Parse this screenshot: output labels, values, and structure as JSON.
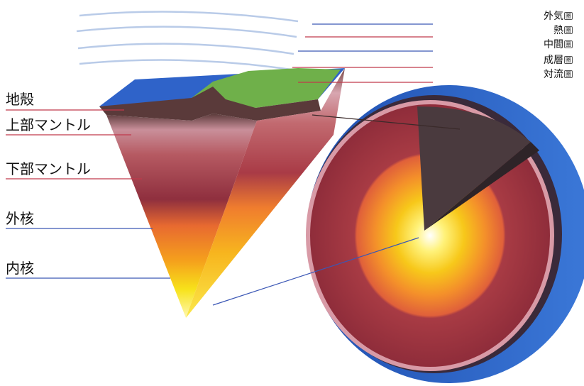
{
  "atmosphere_labels": [
    {
      "name": "外気",
      "suffix": "圏"
    },
    {
      "name": "熱",
      "suffix": "圏"
    },
    {
      "name": "中間",
      "suffix": "圏"
    },
    {
      "name": "成層",
      "suffix": "圏"
    },
    {
      "name": "対流",
      "suffix": "圏"
    }
  ],
  "interior_labels": [
    "地殻",
    "上部マントル",
    "下部マントル",
    "外核",
    "内核"
  ],
  "colors": {
    "ocean_blue": "#2f63c9",
    "land_green": "#6fb04a",
    "crust": "#5a3a3a",
    "upper_mantle": "#c98f9a",
    "lower_mantle": "#9b3a46",
    "outer_core": "#f08a24",
    "inner_core": "#f7e21a",
    "label_line_red": "#c0394b",
    "label_line_blue": "#3b57b5"
  }
}
